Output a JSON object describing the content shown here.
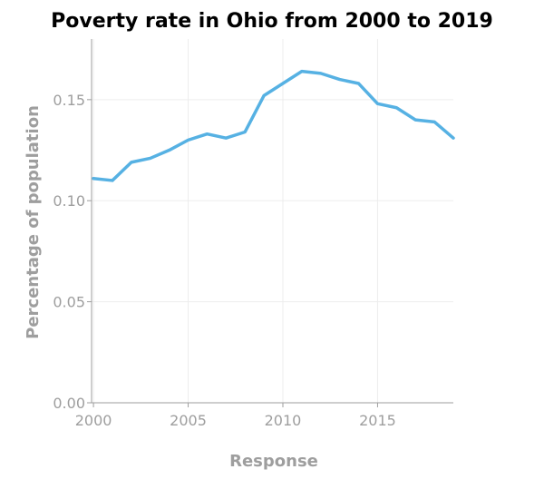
{
  "chart_data": {
    "type": "line",
    "title": "Poverty rate in Ohio from 2000 to 2019",
    "xlabel": "Response",
    "ylabel": "Percentage of population",
    "xlim": [
      1999.9,
      2019
    ],
    "ylim": [
      0,
      0.18
    ],
    "x_ticks": [
      2000,
      2005,
      2010,
      2015
    ],
    "y_ticks": [
      0.0,
      0.05,
      0.1,
      0.15
    ],
    "y_tick_labels": [
      "0.00",
      "0.05",
      "0.10",
      "0.15"
    ],
    "grid": true,
    "series": [
      {
        "x": [
          2000,
          2001,
          2002,
          2003,
          2004,
          2005,
          2006,
          2007,
          2008,
          2009,
          2010,
          2011,
          2012,
          2013,
          2014,
          2015,
          2016,
          2017,
          2018,
          2019
        ],
        "values": [
          0.111,
          0.11,
          0.119,
          0.121,
          0.125,
          0.13,
          0.133,
          0.131,
          0.134,
          0.152,
          0.158,
          0.164,
          0.163,
          0.16,
          0.158,
          0.148,
          0.146,
          0.14,
          0.139,
          0.131
        ]
      }
    ],
    "colors": {
      "line": "#56b1e3",
      "axis": "#9e9e9e",
      "grid": "#ededed"
    }
  }
}
